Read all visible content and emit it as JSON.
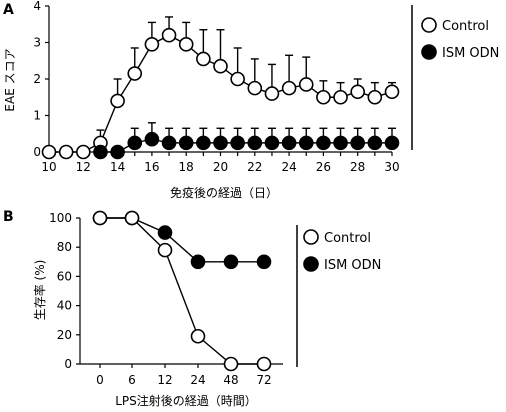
{
  "chart_data": [
    {
      "panel": "A",
      "type": "line",
      "xlabel": "免疫後の経過（日）",
      "ylabel": "EAE スコア",
      "xlim": [
        10,
        30
      ],
      "ylim": [
        0,
        4
      ],
      "xticks": [
        10,
        12,
        14,
        16,
        18,
        20,
        22,
        24,
        26,
        28,
        30
      ],
      "yticks": [
        0,
        1,
        2,
        3,
        4
      ],
      "legend": [
        "Control",
        "ISM ODN"
      ],
      "series": [
        {
          "name": "Control",
          "marker": "open-circle",
          "points": [
            {
              "x": 10,
              "y": 0,
              "err": 0
            },
            {
              "x": 11,
              "y": 0,
              "err": 0
            },
            {
              "x": 12,
              "y": 0,
              "err": 0
            },
            {
              "x": 13,
              "y": 0.25,
              "err": 0.35
            },
            {
              "x": 14,
              "y": 1.4,
              "err": 0.6
            },
            {
              "x": 15,
              "y": 2.15,
              "err": 0.7
            },
            {
              "x": 16,
              "y": 2.95,
              "err": 0.6
            },
            {
              "x": 17,
              "y": 3.2,
              "err": 0.5
            },
            {
              "x": 18,
              "y": 2.95,
              "err": 0.6
            },
            {
              "x": 19,
              "y": 2.55,
              "err": 0.8
            },
            {
              "x": 20,
              "y": 2.35,
              "err": 1.0
            },
            {
              "x": 21,
              "y": 2.0,
              "err": 0.85
            },
            {
              "x": 22,
              "y": 1.75,
              "err": 0.8
            },
            {
              "x": 23,
              "y": 1.6,
              "err": 0.8
            },
            {
              "x": 24,
              "y": 1.75,
              "err": 0.9
            },
            {
              "x": 25,
              "y": 1.85,
              "err": 0.75
            },
            {
              "x": 26,
              "y": 1.5,
              "err": 0.45
            },
            {
              "x": 27,
              "y": 1.5,
              "err": 0.4
            },
            {
              "x": 28,
              "y": 1.65,
              "err": 0.35
            },
            {
              "x": 29,
              "y": 1.5,
              "err": 0.4
            },
            {
              "x": 30,
              "y": 1.65,
              "err": 0.25
            }
          ]
        },
        {
          "name": "ISM ODN",
          "marker": "filled-circle",
          "points": [
            {
              "x": 13,
              "y": 0,
              "err": 0
            },
            {
              "x": 14,
              "y": 0,
              "err": 0
            },
            {
              "x": 15,
              "y": 0.25,
              "err": 0.4
            },
            {
              "x": 16,
              "y": 0.35,
              "err": 0.45
            },
            {
              "x": 17,
              "y": 0.25,
              "err": 0.4
            },
            {
              "x": 18,
              "y": 0.25,
              "err": 0.4
            },
            {
              "x": 19,
              "y": 0.25,
              "err": 0.4
            },
            {
              "x": 20,
              "y": 0.25,
              "err": 0.4
            },
            {
              "x": 21,
              "y": 0.25,
              "err": 0.4
            },
            {
              "x": 22,
              "y": 0.25,
              "err": 0.4
            },
            {
              "x": 23,
              "y": 0.25,
              "err": 0.4
            },
            {
              "x": 24,
              "y": 0.25,
              "err": 0.4
            },
            {
              "x": 25,
              "y": 0.25,
              "err": 0.4
            },
            {
              "x": 26,
              "y": 0.25,
              "err": 0.4
            },
            {
              "x": 27,
              "y": 0.25,
              "err": 0.4
            },
            {
              "x": 28,
              "y": 0.25,
              "err": 0.4
            },
            {
              "x": 29,
              "y": 0.25,
              "err": 0.4
            },
            {
              "x": 30,
              "y": 0.25,
              "err": 0.4
            }
          ]
        }
      ]
    },
    {
      "panel": "B",
      "type": "line",
      "xlabel": "LPS注射後の経過（時間）",
      "ylabel": "生存率 (%)",
      "categories": [
        "0",
        "6",
        "12",
        "24",
        "48",
        "72"
      ],
      "ylim": [
        0,
        100
      ],
      "yticks": [
        0,
        20,
        40,
        60,
        80,
        100
      ],
      "legend": [
        "Control",
        "ISM ODN"
      ],
      "series": [
        {
          "name": "Control",
          "marker": "open-circle",
          "values": [
            100,
            100,
            78,
            19,
            0,
            0
          ]
        },
        {
          "name": "ISM ODN",
          "marker": "filled-circle",
          "values": [
            100,
            100,
            90,
            70,
            70,
            70
          ]
        }
      ]
    }
  ]
}
